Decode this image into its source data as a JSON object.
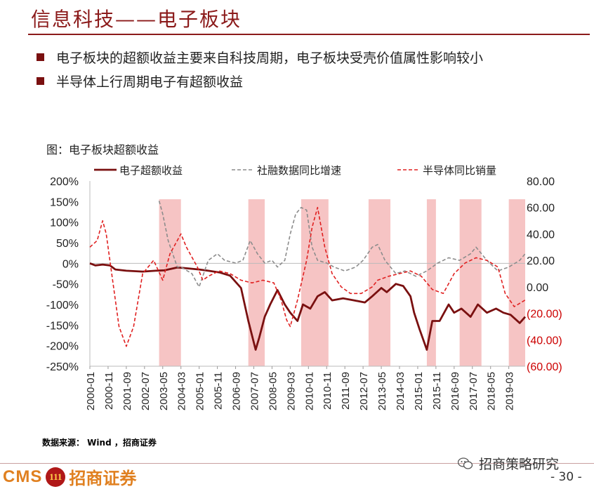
{
  "header": {
    "title": "信息科技——电子板块",
    "bullets": [
      "电子板块的超额收益主要来自科技周期，电子板块受壳价值属性影响较小",
      "半导体上行周期电子有超额收益"
    ]
  },
  "figure_title": "图：电子板块超额收益",
  "source": "数据来源：  Wind ，招商证券",
  "footer": {
    "logo_text": "CMS",
    "logo_badge": "111",
    "company": "招商证券",
    "wechat": "招商策略研究",
    "page": "- 30 -"
  },
  "colors": {
    "brand": "#8b1a1a",
    "excess": "#7a1010",
    "social": "#8c8c8c",
    "semi": "#e02020",
    "shade": "#f6c4c4",
    "right_axis_negative": "#cc0000"
  },
  "icons": {
    "wechat": "wechat-icon"
  },
  "chart_data": {
    "type": "line",
    "legend": [
      "电子超额收益",
      "社融数据同比增速",
      "半导体同比销量"
    ],
    "legend_position": "top",
    "x_ticks": [
      "2000-01",
      "2000-11",
      "2001-09",
      "2002-07",
      "2003-05",
      "2004-03",
      "2005-01",
      "2005-11",
      "2006-09",
      "2007-07",
      "2008-05",
      "2009-03",
      "2010-01",
      "2010-11",
      "2011-09",
      "2012-07",
      "2013-05",
      "2014-03",
      "2015-01",
      "2015-11",
      "2016-09",
      "2017-07",
      "2018-05",
      "2019-03"
    ],
    "x_range": [
      "2000-01",
      "2019-12"
    ],
    "left_axis": {
      "range": [
        -250,
        200
      ],
      "ticks": [
        "200%",
        "150%",
        "100%",
        "50%",
        "0%",
        "-50%",
        "-100%",
        "-150%",
        "-200%",
        "-250%"
      ]
    },
    "right_axis": {
      "range": [
        -60,
        80
      ],
      "ticks": [
        "80.00",
        "60.00",
        "40.00",
        "20.00",
        "0.00",
        "(20.00)",
        "(40.00)",
        "(60.00)"
      ]
    },
    "grid": false,
    "shaded_periods": [
      [
        "2003-03",
        "2004-03"
      ],
      [
        "2007-04",
        "2008-01"
      ],
      [
        "2009-09",
        "2010-12"
      ],
      [
        "2012-10",
        "2013-10"
      ],
      [
        "2015-06",
        "2015-11"
      ],
      [
        "2016-12",
        "2017-12"
      ],
      [
        "2019-03",
        "2019-12"
      ]
    ],
    "series": [
      {
        "name": "电子超额收益",
        "axis": "left",
        "style": "solid",
        "points": [
          [
            "2000-01",
            0
          ],
          [
            "2000-04",
            -5
          ],
          [
            "2000-08",
            -3
          ],
          [
            "2000-12",
            -5
          ],
          [
            "2001-03",
            -15
          ],
          [
            "2001-09",
            -18
          ],
          [
            "2002-06",
            -20
          ],
          [
            "2003-01",
            -18
          ],
          [
            "2003-06",
            -17
          ],
          [
            "2004-01",
            -10
          ],
          [
            "2004-06",
            -12
          ],
          [
            "2005-01",
            -15
          ],
          [
            "2005-06",
            -18
          ],
          [
            "2005-12",
            -22
          ],
          [
            "2006-06",
            -30
          ],
          [
            "2006-12",
            -60
          ],
          [
            "2007-04",
            -140
          ],
          [
            "2007-08",
            -210
          ],
          [
            "2007-10",
            -180
          ],
          [
            "2008-01",
            -130
          ],
          [
            "2008-04",
            -100
          ],
          [
            "2008-08",
            -65
          ],
          [
            "2008-12",
            -100
          ],
          [
            "2009-03",
            -120
          ],
          [
            "2009-07",
            -140
          ],
          [
            "2009-10",
            -100
          ],
          [
            "2010-02",
            -110
          ],
          [
            "2010-06",
            -80
          ],
          [
            "2010-10",
            -70
          ],
          [
            "2011-02",
            -90
          ],
          [
            "2011-08",
            -85
          ],
          [
            "2012-02",
            -90
          ],
          [
            "2012-08",
            -95
          ],
          [
            "2012-12",
            -80
          ],
          [
            "2013-05",
            -60
          ],
          [
            "2013-08",
            -70
          ],
          [
            "2014-01",
            -50
          ],
          [
            "2014-05",
            -55
          ],
          [
            "2014-09",
            -80
          ],
          [
            "2014-11",
            -120
          ],
          [
            "2015-02",
            -160
          ],
          [
            "2015-06",
            -210
          ],
          [
            "2015-09",
            -140
          ],
          [
            "2016-01",
            -140
          ],
          [
            "2016-06",
            -100
          ],
          [
            "2016-09",
            -120
          ],
          [
            "2017-01",
            -110
          ],
          [
            "2017-06",
            -130
          ],
          [
            "2017-10",
            -100
          ],
          [
            "2018-03",
            -120
          ],
          [
            "2018-08",
            -110
          ],
          [
            "2018-12",
            -120
          ],
          [
            "2019-04",
            -125
          ],
          [
            "2019-09",
            -145
          ],
          [
            "2019-12",
            -130
          ]
        ]
      },
      {
        "name": "社融数据同比增速",
        "axis": "right",
        "style": "dashed",
        "points": [
          [
            "2003-03",
            65
          ],
          [
            "2003-05",
            55
          ],
          [
            "2003-08",
            35
          ],
          [
            "2004-01",
            15
          ],
          [
            "2004-03",
            15
          ],
          [
            "2004-09",
            10
          ],
          [
            "2005-01",
            0
          ],
          [
            "2005-06",
            20
          ],
          [
            "2005-11",
            25
          ],
          [
            "2006-03",
            20
          ],
          [
            "2006-09",
            18
          ],
          [
            "2007-01",
            20
          ],
          [
            "2007-05",
            35
          ],
          [
            "2007-09",
            25
          ],
          [
            "2008-01",
            18
          ],
          [
            "2008-05",
            20
          ],
          [
            "2008-08",
            15
          ],
          [
            "2008-12",
            20
          ],
          [
            "2009-03",
            40
          ],
          [
            "2009-06",
            55
          ],
          [
            "2009-09",
            60
          ],
          [
            "2009-12",
            58
          ],
          [
            "2010-03",
            30
          ],
          [
            "2010-06",
            20
          ],
          [
            "2010-11",
            18
          ],
          [
            "2011-03",
            15
          ],
          [
            "2011-09",
            12
          ],
          [
            "2012-03",
            15
          ],
          [
            "2012-07",
            20
          ],
          [
            "2012-12",
            30
          ],
          [
            "2013-03",
            32
          ],
          [
            "2013-07",
            20
          ],
          [
            "2014-01",
            10
          ],
          [
            "2014-06",
            12
          ],
          [
            "2014-12",
            8
          ],
          [
            "2015-06",
            12
          ],
          [
            "2015-12",
            18
          ],
          [
            "2016-06",
            22
          ],
          [
            "2016-12",
            20
          ],
          [
            "2017-06",
            25
          ],
          [
            "2017-09",
            30
          ],
          [
            "2018-03",
            20
          ],
          [
            "2018-09",
            12
          ],
          [
            "2019-03",
            15
          ],
          [
            "2019-09",
            20
          ],
          [
            "2019-12",
            25
          ]
        ]
      },
      {
        "name": "半导体同比销量",
        "axis": "right",
        "style": "dashed",
        "points": [
          [
            "2000-01",
            30
          ],
          [
            "2000-05",
            35
          ],
          [
            "2000-08",
            50
          ],
          [
            "2000-10",
            40
          ],
          [
            "2001-01",
            10
          ],
          [
            "2001-05",
            -30
          ],
          [
            "2001-09",
            -45
          ],
          [
            "2002-01",
            -30
          ],
          [
            "2002-06",
            10
          ],
          [
            "2002-12",
            20
          ],
          [
            "2003-05",
            5
          ],
          [
            "2003-09",
            25
          ],
          [
            "2004-03",
            40
          ],
          [
            "2004-06",
            30
          ],
          [
            "2004-12",
            15
          ],
          [
            "2005-03",
            5
          ],
          [
            "2005-06",
            8
          ],
          [
            "2005-12",
            12
          ],
          [
            "2006-06",
            10
          ],
          [
            "2006-12",
            5
          ],
          [
            "2007-06",
            3
          ],
          [
            "2007-12",
            5
          ],
          [
            "2008-06",
            3
          ],
          [
            "2008-10",
            -10
          ],
          [
            "2009-01",
            -25
          ],
          [
            "2009-03",
            -30
          ],
          [
            "2009-07",
            -10
          ],
          [
            "2009-12",
            20
          ],
          [
            "2010-03",
            45
          ],
          [
            "2010-06",
            60
          ],
          [
            "2010-10",
            30
          ],
          [
            "2011-02",
            10
          ],
          [
            "2011-07",
            0
          ],
          [
            "2011-12",
            -5
          ],
          [
            "2012-06",
            -5
          ],
          [
            "2012-12",
            0
          ],
          [
            "2013-03",
            5
          ],
          [
            "2013-09",
            8
          ],
          [
            "2014-03",
            10
          ],
          [
            "2014-09",
            12
          ],
          [
            "2015-03",
            8
          ],
          [
            "2015-09",
            -2
          ],
          [
            "2016-03",
            -5
          ],
          [
            "2016-09",
            10
          ],
          [
            "2017-03",
            18
          ],
          [
            "2017-09",
            22
          ],
          [
            "2018-03",
            20
          ],
          [
            "2018-09",
            15
          ],
          [
            "2019-01",
            -5
          ],
          [
            "2019-06",
            -15
          ],
          [
            "2019-12",
            -10
          ]
        ]
      }
    ]
  }
}
